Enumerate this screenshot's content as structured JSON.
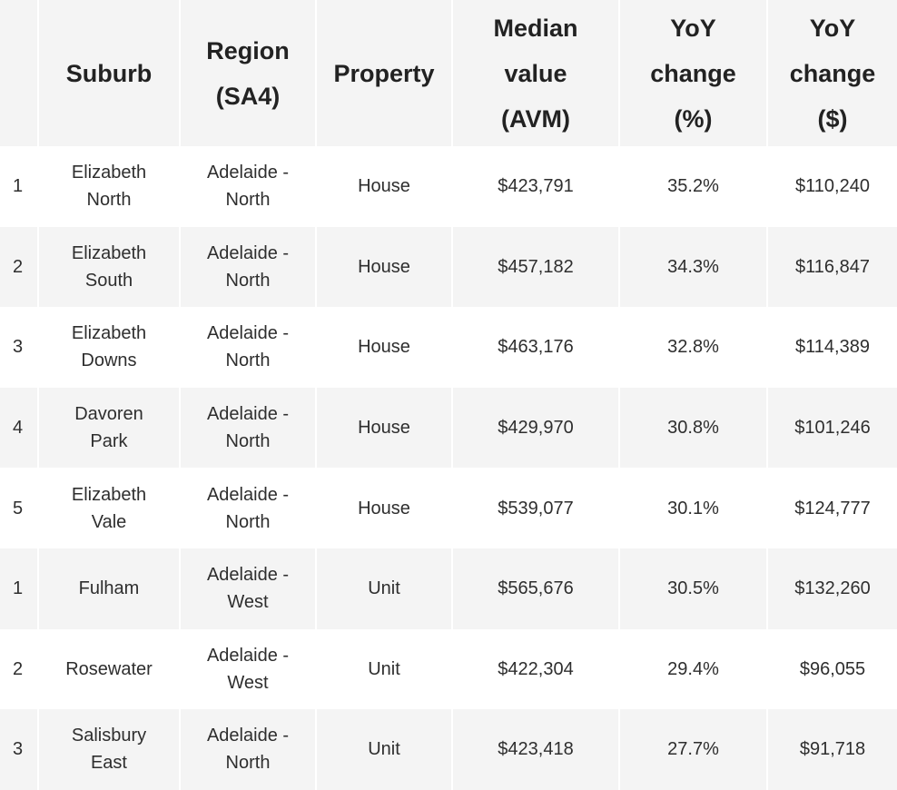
{
  "table": {
    "headers": [
      {
        "lines": [
          ""
        ]
      },
      {
        "lines": [
          "Suburb"
        ]
      },
      {
        "lines": [
          "Region",
          "(SA4)"
        ]
      },
      {
        "lines": [
          "Property"
        ]
      },
      {
        "lines": [
          "Median",
          "value",
          "(AVM)"
        ]
      },
      {
        "lines": [
          "YoY",
          "change",
          "(%)"
        ]
      },
      {
        "lines": [
          "YoY",
          "change",
          "($)"
        ]
      }
    ],
    "rows": [
      {
        "rank": "1",
        "suburb": [
          "Elizabeth",
          "North"
        ],
        "region": [
          "Adelaide -",
          "North"
        ],
        "property": "House",
        "median": "$423,791",
        "yoy_pct": "35.2%",
        "yoy_usd": "$110,240"
      },
      {
        "rank": "2",
        "suburb": [
          "Elizabeth",
          "South"
        ],
        "region": [
          "Adelaide -",
          "North"
        ],
        "property": "House",
        "median": "$457,182",
        "yoy_pct": "34.3%",
        "yoy_usd": "$116,847"
      },
      {
        "rank": "3",
        "suburb": [
          "Elizabeth",
          "Downs"
        ],
        "region": [
          "Adelaide -",
          "North"
        ],
        "property": "House",
        "median": "$463,176",
        "yoy_pct": "32.8%",
        "yoy_usd": "$114,389"
      },
      {
        "rank": "4",
        "suburb": [
          "Davoren",
          "Park"
        ],
        "region": [
          "Adelaide -",
          "North"
        ],
        "property": "House",
        "median": "$429,970",
        "yoy_pct": "30.8%",
        "yoy_usd": "$101,246"
      },
      {
        "rank": "5",
        "suburb": [
          "Elizabeth",
          "Vale"
        ],
        "region": [
          "Adelaide -",
          "North"
        ],
        "property": "House",
        "median": "$539,077",
        "yoy_pct": "30.1%",
        "yoy_usd": "$124,777"
      },
      {
        "rank": "1",
        "suburb": [
          "Fulham"
        ],
        "region": [
          "Adelaide -",
          "West"
        ],
        "property": "Unit",
        "median": "$565,676",
        "yoy_pct": "30.5%",
        "yoy_usd": "$132,260"
      },
      {
        "rank": "2",
        "suburb": [
          "Rosewater"
        ],
        "region": [
          "Adelaide -",
          "West"
        ],
        "property": "Unit",
        "median": "$422,304",
        "yoy_pct": "29.4%",
        "yoy_usd": "$96,055"
      },
      {
        "rank": "3",
        "suburb": [
          "Salisbury",
          "East"
        ],
        "region": [
          "Adelaide -",
          "North"
        ],
        "property": "Unit",
        "median": "$423,418",
        "yoy_pct": "27.7%",
        "yoy_usd": "$91,718"
      }
    ]
  }
}
